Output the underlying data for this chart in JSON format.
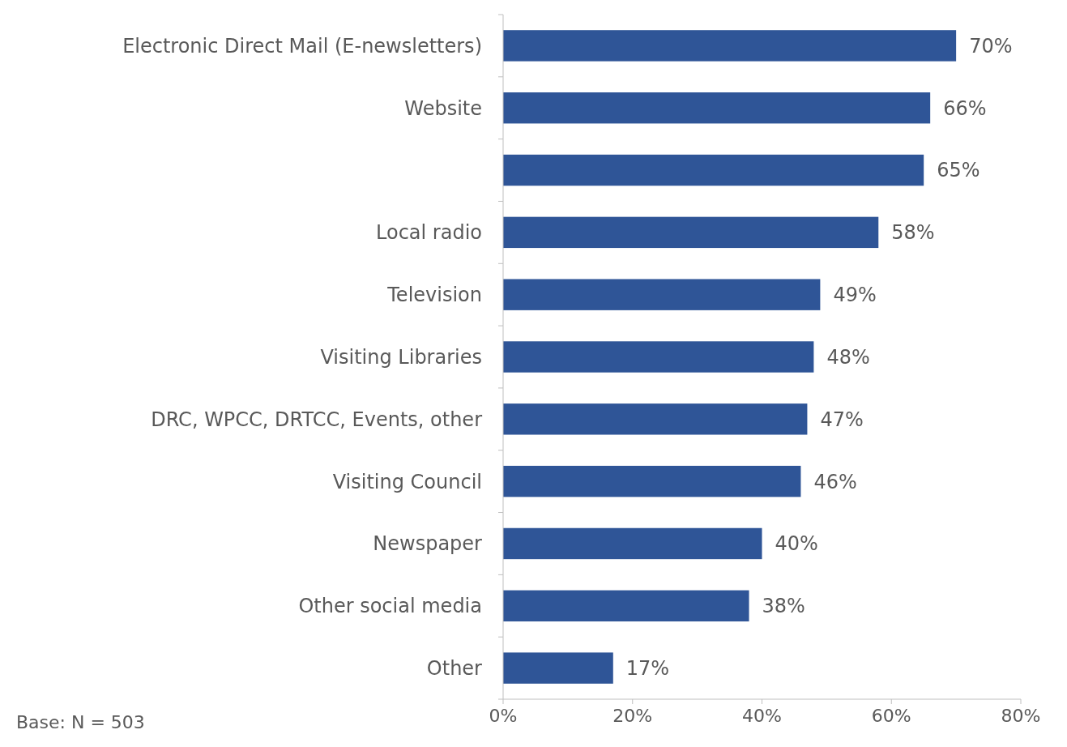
{
  "chart_data": {
    "type": "bar",
    "orientation": "horizontal",
    "categories": [
      "Electronic Direct Mail (E-newsletters)",
      "Website",
      null,
      "Local radio",
      "Television",
      "Visiting Libraries",
      "DRC, WPCC, DRTCC, Events, other",
      "Visiting Council",
      "Newspaper",
      "Other social media",
      "Other"
    ],
    "values": [
      70,
      66,
      65,
      58,
      49,
      48,
      47,
      46,
      40,
      38,
      17
    ],
    "value_labels": [
      "70%",
      "66%",
      "65%",
      "58%",
      "49%",
      "48%",
      "47%",
      "46%",
      "40%",
      "38%",
      "17%"
    ],
    "color": "#2f5597",
    "xlim": [
      0,
      80
    ],
    "xticks": [
      {
        "value": 0,
        "label": "0%"
      },
      {
        "value": 20,
        "label": "20%"
      },
      {
        "value": 40,
        "label": "40%"
      },
      {
        "value": 60,
        "label": "60%"
      },
      {
        "value": 80,
        "label": "80%"
      }
    ],
    "annotations": [
      "Base: N = 503"
    ],
    "grid": false
  }
}
